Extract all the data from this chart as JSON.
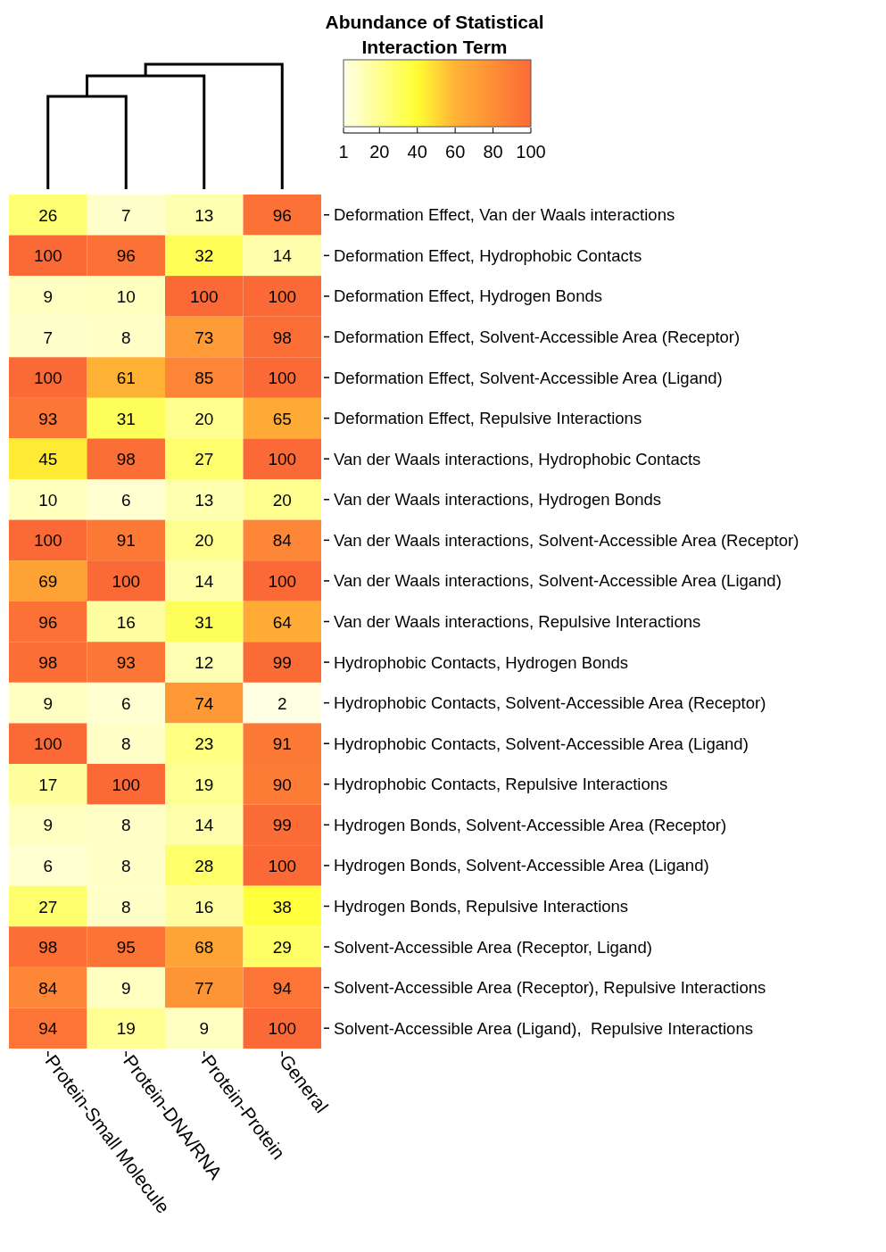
{
  "chart_data": {
    "type": "heatmap",
    "clabel": "Abundance of Statistical Interaction Term",
    "categories": [
      "Protein-Small Molecule",
      "Protein-DNA/RNA",
      "Protein-Protein",
      "General"
    ],
    "y_categories": [
      "Deformation Effect, Van der Waals interactions",
      "Deformation Effect, Hydrophobic Contacts",
      "Deformation Effect, Hydrogen Bonds",
      "Deformation Effect, Solvent-Accessible Area (Receptor)",
      "Deformation Effect, Solvent-Accessible Area (Ligand)",
      "Deformation Effect, Repulsive Interactions",
      "Van der Waals interactions, Hydrophobic Contacts",
      "Van der Waals interactions, Hydrogen Bonds",
      "Van der Waals interactions, Solvent-Accessible Area (Receptor)",
      "Van der Waals interactions, Solvent-Accessible Area (Ligand)",
      "Van der Waals interactions, Repulsive Interactions",
      "Hydrophobic Contacts, Hydrogen Bonds",
      "Hydrophobic Contacts, Solvent-Accessible Area (Receptor)",
      "Hydrophobic Contacts, Solvent-Accessible Area (Ligand)",
      "Hydrophobic Contacts, Repulsive Interactions",
      "Hydrogen Bonds, Solvent-Accessible Area (Receptor)",
      "Hydrogen Bonds, Solvent-Accessible Area (Ligand)",
      "Hydrogen Bonds, Repulsive Interactions",
      "Solvent-Accessible Area (Receptor, Ligand)",
      "Solvent-Accessible Area (Receptor), Repulsive Interactions",
      "Solvent-Accessible Area (Ligand),  Repulsive Interactions"
    ],
    "cells": [
      [
        26,
        7,
        13,
        96
      ],
      [
        100,
        96,
        32,
        14
      ],
      [
        9,
        10,
        100,
        100
      ],
      [
        7,
        8,
        73,
        98
      ],
      [
        100,
        61,
        85,
        100
      ],
      [
        93,
        31,
        20,
        65
      ],
      [
        45,
        98,
        27,
        100
      ],
      [
        10,
        6,
        13,
        20
      ],
      [
        100,
        91,
        20,
        84
      ],
      [
        69,
        100,
        14,
        100
      ],
      [
        96,
        16,
        31,
        64
      ],
      [
        98,
        93,
        12,
        99
      ],
      [
        9,
        6,
        74,
        2
      ],
      [
        100,
        8,
        23,
        91
      ],
      [
        17,
        100,
        19,
        90
      ],
      [
        9,
        8,
        14,
        99
      ],
      [
        6,
        8,
        28,
        100
      ],
      [
        27,
        8,
        16,
        38
      ],
      [
        98,
        95,
        68,
        29
      ],
      [
        84,
        9,
        77,
        94
      ],
      [
        94,
        19,
        9,
        100
      ]
    ],
    "data_labels": true,
    "clim": [
      1,
      100
    ],
    "cticks": [
      1,
      20,
      40,
      60,
      80,
      100
    ]
  }
}
